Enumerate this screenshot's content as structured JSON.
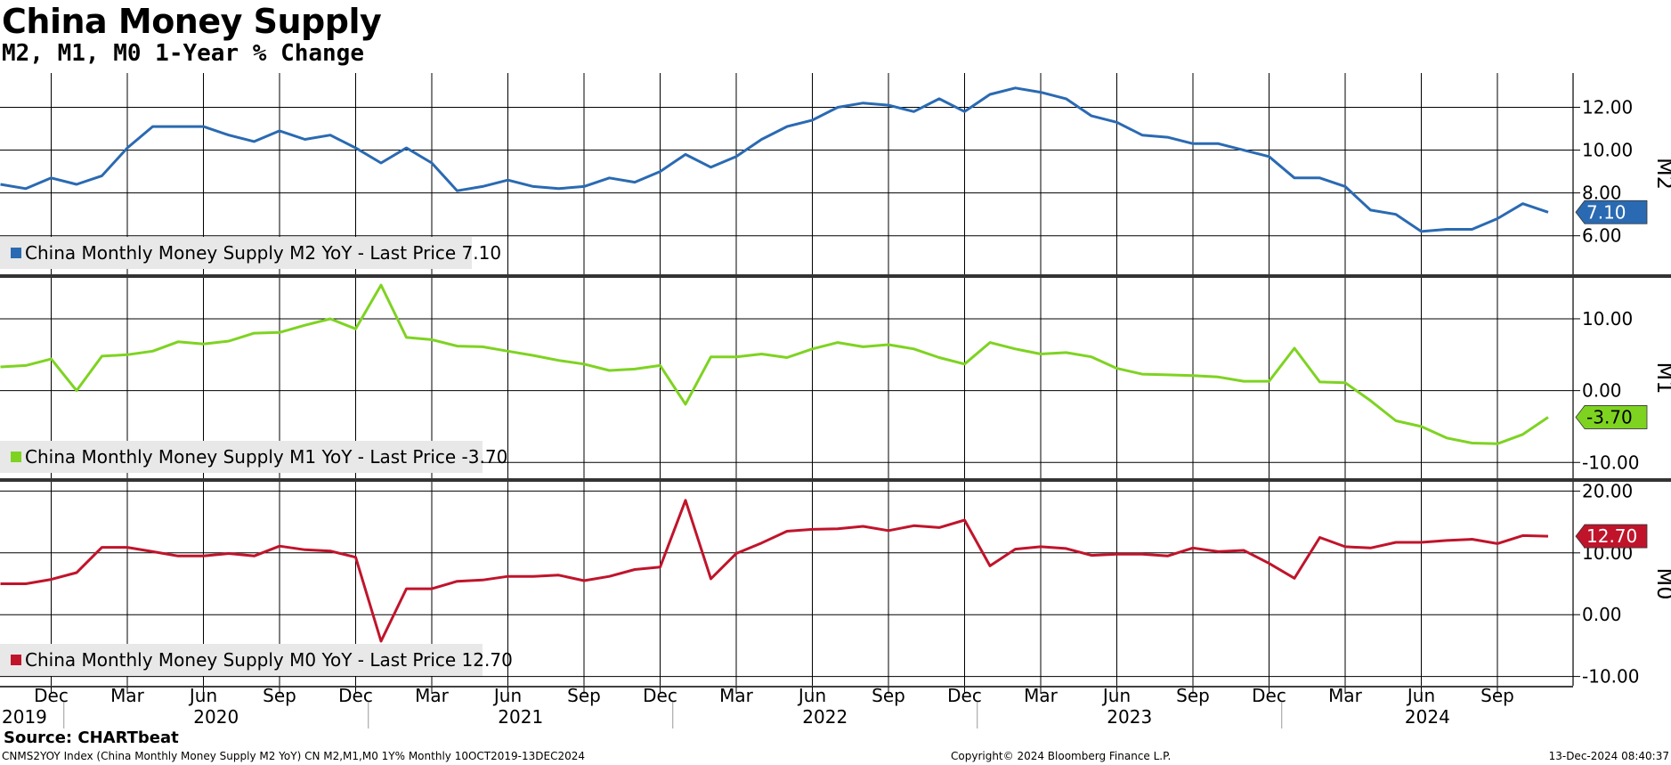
{
  "header": {
    "title": "China Money Supply",
    "subtitle": "M2, M1, M0 1-Year % Change"
  },
  "footer": {
    "source": "Source: CHARTbeat",
    "ticker": "CNMS2YOY Index (China Monthly Money Supply M2 YoY) CN M2,M1,M0 1Y%  Monthly 10OCT2019-13DEC2024",
    "copyright": "Copyright© 2024 Bloomberg Finance L.P.",
    "timestamp": "13-Dec-2024 08:40:37"
  },
  "chart_data": [
    {
      "type": "line",
      "panel_label": "M2",
      "legend": "China Monthly Money Supply M2 YoY - Last Price 7.10",
      "last_price_label": "7.10",
      "color": "#2a6ab2",
      "ylim": [
        4.2,
        13.6
      ],
      "yticks": [
        "6.00",
        "8.00",
        "10.00",
        "12.00"
      ],
      "x": [
        "2019-10",
        "2019-11",
        "2019-12",
        "2020-01",
        "2020-02",
        "2020-03",
        "2020-04",
        "2020-05",
        "2020-06",
        "2020-07",
        "2020-08",
        "2020-09",
        "2020-10",
        "2020-11",
        "2020-12",
        "2021-01",
        "2021-02",
        "2021-03",
        "2021-04",
        "2021-05",
        "2021-06",
        "2021-07",
        "2021-08",
        "2021-09",
        "2021-10",
        "2021-11",
        "2021-12",
        "2022-01",
        "2022-02",
        "2022-03",
        "2022-04",
        "2022-05",
        "2022-06",
        "2022-07",
        "2022-08",
        "2022-09",
        "2022-10",
        "2022-11",
        "2022-12",
        "2023-01",
        "2023-02",
        "2023-03",
        "2023-04",
        "2023-05",
        "2023-06",
        "2023-07",
        "2023-08",
        "2023-09",
        "2023-10",
        "2023-11",
        "2023-12",
        "2024-01",
        "2024-02",
        "2024-03",
        "2024-04",
        "2024-05",
        "2024-06",
        "2024-07",
        "2024-08",
        "2024-09",
        "2024-10",
        "2024-11"
      ],
      "values": [
        8.4,
        8.2,
        8.7,
        8.4,
        8.8,
        10.1,
        11.1,
        11.1,
        11.1,
        10.7,
        10.4,
        10.9,
        10.5,
        10.7,
        10.1,
        9.4,
        10.1,
        9.4,
        8.1,
        8.3,
        8.6,
        8.3,
        8.2,
        8.3,
        8.7,
        8.5,
        9.0,
        9.8,
        9.2,
        9.7,
        10.5,
        11.1,
        11.4,
        12.0,
        12.2,
        12.1,
        11.8,
        12.4,
        11.8,
        12.6,
        12.9,
        12.7,
        12.4,
        11.6,
        11.3,
        10.7,
        10.6,
        10.3,
        10.3,
        10.0,
        9.7,
        8.7,
        8.7,
        8.3,
        7.2,
        7.0,
        6.2,
        6.3,
        6.3,
        6.8,
        7.5,
        7.1
      ]
    },
    {
      "type": "line",
      "panel_label": "M1",
      "legend": "China Monthly Money Supply M1 YoY - Last Price -3.70",
      "last_price_label": "-3.70",
      "color": "#7ed321",
      "ylim": [
        -12.2,
        15.7
      ],
      "yticks": [
        "-10.00",
        "0.00",
        "10.00"
      ],
      "x": [
        "2019-10",
        "2019-11",
        "2019-12",
        "2020-01",
        "2020-02",
        "2020-03",
        "2020-04",
        "2020-05",
        "2020-06",
        "2020-07",
        "2020-08",
        "2020-09",
        "2020-10",
        "2020-11",
        "2020-12",
        "2021-01",
        "2021-02",
        "2021-03",
        "2021-04",
        "2021-05",
        "2021-06",
        "2021-07",
        "2021-08",
        "2021-09",
        "2021-10",
        "2021-11",
        "2021-12",
        "2022-01",
        "2022-02",
        "2022-03",
        "2022-04",
        "2022-05",
        "2022-06",
        "2022-07",
        "2022-08",
        "2022-09",
        "2022-10",
        "2022-11",
        "2022-12",
        "2023-01",
        "2023-02",
        "2023-03",
        "2023-04",
        "2023-05",
        "2023-06",
        "2023-07",
        "2023-08",
        "2023-09",
        "2023-10",
        "2023-11",
        "2023-12",
        "2024-01",
        "2024-02",
        "2024-03",
        "2024-04",
        "2024-05",
        "2024-06",
        "2024-07",
        "2024-08",
        "2024-09",
        "2024-10",
        "2024-11"
      ],
      "values": [
        3.3,
        3.5,
        4.4,
        0.0,
        4.8,
        5.0,
        5.5,
        6.8,
        6.5,
        6.9,
        8.0,
        8.1,
        9.1,
        10.0,
        8.6,
        14.7,
        7.4,
        7.1,
        6.2,
        6.1,
        5.5,
        4.9,
        4.2,
        3.7,
        2.8,
        3.0,
        3.5,
        -1.9,
        4.7,
        4.7,
        5.1,
        4.6,
        5.8,
        6.7,
        6.1,
        6.4,
        5.8,
        4.6,
        3.7,
        6.7,
        5.8,
        5.1,
        5.3,
        4.7,
        3.1,
        2.3,
        2.2,
        2.1,
        1.9,
        1.3,
        1.3,
        5.9,
        1.2,
        1.1,
        -1.4,
        -4.2,
        -5.0,
        -6.6,
        -7.3,
        -7.4,
        -6.1,
        -3.7
      ]
    },
    {
      "type": "line",
      "panel_label": "M0",
      "legend": "China Monthly Money Supply M0 YoY - Last Price 12.70",
      "last_price_label": "12.70",
      "color": "#c0142b",
      "ylim": [
        -11.5,
        21.5
      ],
      "yticks": [
        "-10.00",
        "0.00",
        "10.00",
        "20.00"
      ],
      "x": [
        "2019-10",
        "2019-11",
        "2019-12",
        "2020-01",
        "2020-02",
        "2020-03",
        "2020-04",
        "2020-05",
        "2020-06",
        "2020-07",
        "2020-08",
        "2020-09",
        "2020-10",
        "2020-11",
        "2020-12",
        "2021-01",
        "2021-02",
        "2021-03",
        "2021-04",
        "2021-05",
        "2021-06",
        "2021-07",
        "2021-08",
        "2021-09",
        "2021-10",
        "2021-11",
        "2021-12",
        "2022-01",
        "2022-02",
        "2022-03",
        "2022-04",
        "2022-05",
        "2022-06",
        "2022-07",
        "2022-08",
        "2022-09",
        "2022-10",
        "2022-11",
        "2022-12",
        "2023-01",
        "2023-02",
        "2023-03",
        "2023-04",
        "2023-05",
        "2023-06",
        "2023-07",
        "2023-08",
        "2023-09",
        "2023-10",
        "2023-11",
        "2023-12",
        "2024-01",
        "2024-02",
        "2024-03",
        "2024-04",
        "2024-05",
        "2024-06",
        "2024-07",
        "2024-08",
        "2024-09",
        "2024-10",
        "2024-11"
      ],
      "values": [
        5.0,
        5.0,
        5.7,
        6.8,
        10.9,
        10.9,
        10.2,
        9.5,
        9.5,
        9.9,
        9.5,
        11.1,
        10.5,
        10.3,
        9.3,
        -4.3,
        4.2,
        4.2,
        5.4,
        5.6,
        6.2,
        6.2,
        6.4,
        5.5,
        6.2,
        7.3,
        7.7,
        18.5,
        5.8,
        9.9,
        11.6,
        13.5,
        13.8,
        13.9,
        14.3,
        13.6,
        14.4,
        14.1,
        15.3,
        7.9,
        10.6,
        11.0,
        10.7,
        9.6,
        9.8,
        9.8,
        9.5,
        10.8,
        10.2,
        10.4,
        8.3,
        5.9,
        12.5,
        11.0,
        10.8,
        11.7,
        11.7,
        12.0,
        12.2,
        11.5,
        12.8,
        12.7
      ]
    }
  ],
  "x_axis": {
    "month_labels": [
      {
        "month": "2019-12",
        "label": "Dec"
      },
      {
        "month": "2020-03",
        "label": "Mar"
      },
      {
        "month": "2020-06",
        "label": "Jun"
      },
      {
        "month": "2020-09",
        "label": "Sep"
      },
      {
        "month": "2020-12",
        "label": "Dec"
      },
      {
        "month": "2021-03",
        "label": "Mar"
      },
      {
        "month": "2021-06",
        "label": "Jun"
      },
      {
        "month": "2021-09",
        "label": "Sep"
      },
      {
        "month": "2021-12",
        "label": "Dec"
      },
      {
        "month": "2022-03",
        "label": "Mar"
      },
      {
        "month": "2022-06",
        "label": "Jun"
      },
      {
        "month": "2022-09",
        "label": "Sep"
      },
      {
        "month": "2022-12",
        "label": "Dec"
      },
      {
        "month": "2023-03",
        "label": "Mar"
      },
      {
        "month": "2023-06",
        "label": "Jun"
      },
      {
        "month": "2023-09",
        "label": "Sep"
      },
      {
        "month": "2023-12",
        "label": "Dec"
      },
      {
        "month": "2024-03",
        "label": "Mar"
      },
      {
        "month": "2024-06",
        "label": "Jun"
      },
      {
        "month": "2024-09",
        "label": "Sep"
      }
    ],
    "year_labels": [
      "2019",
      "2020",
      "2021",
      "2022",
      "2023",
      "2024"
    ]
  }
}
